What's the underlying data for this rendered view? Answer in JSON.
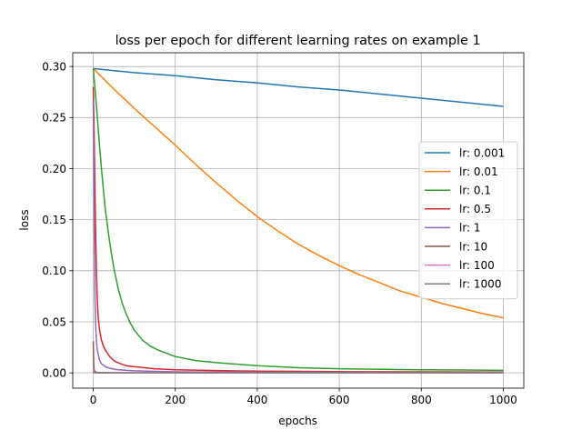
{
  "chart_data": {
    "type": "line",
    "title": "loss per epoch for different learning rates on example 1",
    "xlabel": "epochs",
    "ylabel": "loss",
    "xlim": [
      -50,
      1050
    ],
    "ylim": [
      -0.015,
      0.3135
    ],
    "xticks": [
      0,
      200,
      400,
      600,
      800,
      1000
    ],
    "xtick_labels": [
      "0",
      "200",
      "400",
      "600",
      "800",
      "1000"
    ],
    "yticks": [
      0.0,
      0.05,
      0.1,
      0.15,
      0.2,
      0.25,
      0.3
    ],
    "ytick_labels": [
      "0.00",
      "0.05",
      "0.10",
      "0.15",
      "0.20",
      "0.25",
      "0.30"
    ],
    "grid": true,
    "legend_position": "center-right",
    "series": [
      {
        "name": "lr: 0.001",
        "color": "#1f77b4",
        "x": [
          0,
          100,
          200,
          300,
          400,
          500,
          600,
          700,
          800,
          900,
          1000
        ],
        "y": [
          0.298,
          0.294,
          0.291,
          0.287,
          0.284,
          0.28,
          0.277,
          0.273,
          0.269,
          0.265,
          0.261
        ]
      },
      {
        "name": "lr: 0.01",
        "color": "#ff7f0e",
        "x": [
          0,
          50,
          100,
          150,
          200,
          250,
          300,
          350,
          400,
          450,
          500,
          550,
          600,
          650,
          700,
          750,
          800,
          850,
          900,
          950,
          1000
        ],
        "y": [
          0.298,
          0.278,
          0.259,
          0.241,
          0.223,
          0.204,
          0.186,
          0.169,
          0.153,
          0.139,
          0.126,
          0.115,
          0.105,
          0.096,
          0.088,
          0.08,
          0.074,
          0.068,
          0.063,
          0.058,
          0.054
        ]
      },
      {
        "name": "lr: 0.1",
        "color": "#2ca02c",
        "x": [
          0,
          5,
          10,
          15,
          20,
          25,
          30,
          40,
          50,
          60,
          70,
          80,
          90,
          100,
          120,
          140,
          160,
          180,
          200,
          250,
          300,
          400,
          500,
          600,
          700,
          800,
          900,
          1000
        ],
        "y": [
          0.298,
          0.275,
          0.25,
          0.224,
          0.2,
          0.178,
          0.158,
          0.128,
          0.103,
          0.084,
          0.069,
          0.058,
          0.049,
          0.042,
          0.032,
          0.026,
          0.022,
          0.019,
          0.016,
          0.012,
          0.01,
          0.007,
          0.005,
          0.004,
          0.0035,
          0.003,
          0.0028,
          0.0025
        ]
      },
      {
        "name": "lr: 0.5",
        "color": "#d62728",
        "x": [
          0,
          1,
          2,
          3,
          4,
          5,
          6,
          8,
          10,
          12,
          15,
          20,
          25,
          30,
          40,
          50,
          60,
          80,
          100,
          150,
          200,
          300,
          400,
          600,
          800,
          1000
        ],
        "y": [
          0.28,
          0.262,
          0.238,
          0.212,
          0.185,
          0.158,
          0.133,
          0.095,
          0.07,
          0.055,
          0.043,
          0.032,
          0.026,
          0.022,
          0.016,
          0.012,
          0.01,
          0.007,
          0.006,
          0.004,
          0.003,
          0.0022,
          0.0017,
          0.0012,
          0.001,
          0.0008
        ]
      },
      {
        "name": "lr: 1",
        "color": "#9467bd",
        "x": [
          0,
          1,
          2,
          3,
          4,
          5,
          6,
          8,
          10,
          15,
          20,
          30,
          40,
          60,
          100,
          200,
          400,
          1000
        ],
        "y": [
          0.267,
          0.22,
          0.165,
          0.115,
          0.08,
          0.058,
          0.045,
          0.03,
          0.022,
          0.013,
          0.009,
          0.006,
          0.0045,
          0.003,
          0.002,
          0.001,
          0.0006,
          0.0003
        ]
      },
      {
        "name": "lr: 10",
        "color": "#8c564b",
        "x": [
          0,
          1,
          2,
          3,
          5,
          10,
          20,
          50,
          100,
          1000
        ],
        "y": [
          0.031,
          0.01,
          0.004,
          0.002,
          0.001,
          0.0005,
          0.0003,
          0.0001,
          0.0001,
          0.0
        ]
      },
      {
        "name": "lr: 100",
        "color": "#e377c2",
        "x": [
          0,
          1,
          2,
          5,
          10,
          1000
        ],
        "y": [
          0.004,
          0.001,
          0.0004,
          0.0001,
          0.0,
          0.0
        ]
      },
      {
        "name": "lr: 1000",
        "color": "#7f7f7f",
        "x": [
          0,
          1,
          2,
          5,
          10,
          1000
        ],
        "y": [
          0.001,
          0.0002,
          0.0,
          0.0,
          0.0,
          0.0
        ]
      }
    ]
  }
}
